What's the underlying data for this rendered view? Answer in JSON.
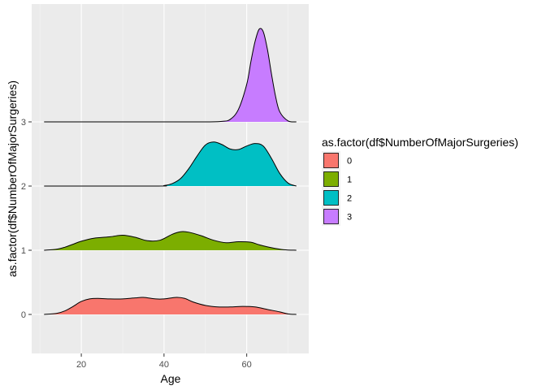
{
  "chart_data": {
    "type": "area",
    "subtype": "ridgeline",
    "xlabel": "Age",
    "ylabel": "as.factor(df$NumberOfMajorSurgeries)",
    "x_ticks": [
      20,
      40,
      60
    ],
    "xlim": [
      8,
      75
    ],
    "y_categories": [
      "0",
      "1",
      "2",
      "3"
    ],
    "grid": true,
    "legend": {
      "title": "as.factor(df$NumberOfMajorSurgeries)",
      "position": "right",
      "entries": [
        {
          "label": "0",
          "color": "#F8766D"
        },
        {
          "label": "1",
          "color": "#7CAE00"
        },
        {
          "label": "2",
          "color": "#00BFC4"
        },
        {
          "label": "3",
          "color": "#C77CFF"
        }
      ]
    },
    "series": [
      {
        "name": "0",
        "color": "#F8766D",
        "x": [
          11,
          14,
          16,
          18,
          20,
          22,
          24,
          27,
          30,
          33,
          35,
          38,
          40,
          43,
          45,
          47,
          50,
          53,
          56,
          59,
          62,
          65,
          68,
          70,
          72
        ],
        "density": [
          0.0,
          0.02,
          0.07,
          0.16,
          0.26,
          0.31,
          0.32,
          0.31,
          0.31,
          0.33,
          0.34,
          0.31,
          0.31,
          0.34,
          0.32,
          0.25,
          0.18,
          0.15,
          0.15,
          0.16,
          0.15,
          0.1,
          0.05,
          0.01,
          0.0
        ]
      },
      {
        "name": "1",
        "color": "#7CAE00",
        "x": [
          11,
          14,
          16,
          18,
          20,
          23,
          27,
          30,
          33,
          36,
          39,
          42,
          44,
          46,
          49,
          52,
          55,
          58,
          61,
          63,
          66,
          69,
          72
        ],
        "density": [
          0.0,
          0.02,
          0.06,
          0.12,
          0.18,
          0.24,
          0.27,
          0.3,
          0.26,
          0.19,
          0.2,
          0.32,
          0.37,
          0.36,
          0.29,
          0.2,
          0.15,
          0.17,
          0.16,
          0.11,
          0.05,
          0.01,
          0.0
        ]
      },
      {
        "name": "2",
        "color": "#00BFC4",
        "x": [
          11,
          38,
          40,
          42,
          44,
          46,
          48,
          50,
          52,
          54,
          56,
          58,
          60,
          62,
          64,
          66,
          68,
          70,
          72
        ],
        "density": [
          0.0,
          0.0,
          0.01,
          0.05,
          0.15,
          0.35,
          0.6,
          0.82,
          0.88,
          0.83,
          0.74,
          0.73,
          0.8,
          0.85,
          0.8,
          0.55,
          0.25,
          0.06,
          0.0
        ]
      },
      {
        "name": "3",
        "color": "#C77CFF",
        "x": [
          11,
          40,
          50,
          54,
          56,
          58,
          60,
          61,
          62,
          63,
          64,
          65,
          66,
          67,
          68,
          70,
          72
        ],
        "density": [
          0.0,
          0.0,
          0.0,
          0.01,
          0.05,
          0.25,
          0.75,
          1.2,
          1.6,
          1.85,
          1.8,
          1.45,
          0.95,
          0.5,
          0.2,
          0.02,
          0.0
        ]
      }
    ]
  }
}
